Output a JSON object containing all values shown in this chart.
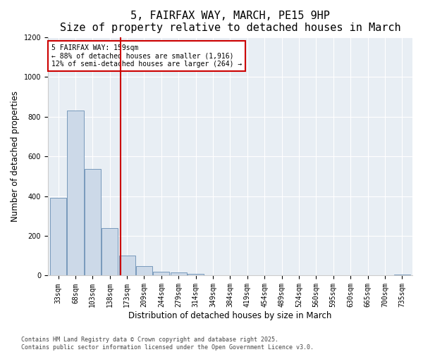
{
  "title": "5, FAIRFAX WAY, MARCH, PE15 9HP",
  "subtitle": "Size of property relative to detached houses in March",
  "xlabel": "Distribution of detached houses by size in March",
  "ylabel": "Number of detached properties",
  "bar_color": "#ccd9e8",
  "bar_edge_color": "#7799bb",
  "background_color": "#e8eef4",
  "categories": [
    "33sqm",
    "68sqm",
    "103sqm",
    "138sqm",
    "173sqm",
    "209sqm",
    "244sqm",
    "279sqm",
    "314sqm",
    "349sqm",
    "384sqm",
    "419sqm",
    "454sqm",
    "489sqm",
    "524sqm",
    "560sqm",
    "595sqm",
    "630sqm",
    "665sqm",
    "700sqm",
    "735sqm"
  ],
  "values": [
    390,
    830,
    535,
    240,
    100,
    48,
    20,
    15,
    8,
    0,
    0,
    0,
    0,
    0,
    0,
    0,
    0,
    0,
    0,
    0,
    4
  ],
  "ylim": [
    0,
    1200
  ],
  "yticks": [
    0,
    200,
    400,
    600,
    800,
    1000,
    1200
  ],
  "vline_position": 3.62,
  "vline_color": "#cc0000",
  "annotation_text": "5 FAIRFAX WAY: 159sqm\n← 88% of detached houses are smaller (1,916)\n12% of semi-detached houses are larger (264) →",
  "annotation_box_color": "#ffffff",
  "annotation_box_edge_color": "#cc0000",
  "footer_text": "Contains HM Land Registry data © Crown copyright and database right 2025.\nContains public sector information licensed under the Open Government Licence v3.0.",
  "title_fontsize": 11,
  "subtitle_fontsize": 9.5,
  "tick_fontsize": 7,
  "label_fontsize": 8.5,
  "annotation_fontsize": 7,
  "footer_fontsize": 6
}
